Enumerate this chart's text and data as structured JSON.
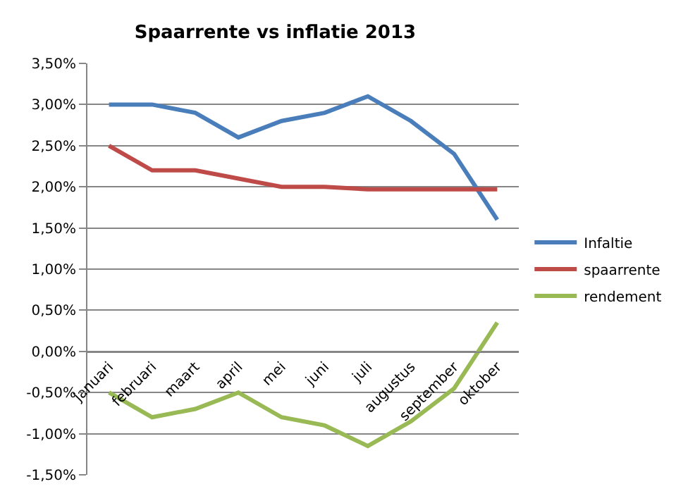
{
  "chart_data": {
    "type": "line",
    "title": "Spaarrente vs inflatie 2013",
    "categories": [
      "januari",
      "februari",
      "maart",
      "april",
      "mei",
      "juni",
      "juli",
      "augustus",
      "september",
      "oktober"
    ],
    "series": [
      {
        "name": "Infaltie",
        "color": "#4a7ebb",
        "values": [
          3.0,
          3.0,
          2.9,
          2.6,
          2.8,
          2.9,
          3.1,
          2.8,
          2.4,
          1.6
        ]
      },
      {
        "name": "spaarrente",
        "color": "#be4b48",
        "values": [
          2.5,
          2.2,
          2.2,
          2.1,
          2.0,
          2.0,
          1.97,
          1.97,
          1.97,
          1.97
        ]
      },
      {
        "name": "rendement",
        "color": "#98b954",
        "values": [
          -0.5,
          -0.8,
          -0.7,
          -0.5,
          -0.8,
          -0.9,
          -1.15,
          -0.85,
          -0.45,
          0.35
        ]
      }
    ],
    "ylim": [
      -1.5,
      3.5
    ],
    "yticks": [
      {
        "value": -1.5,
        "label": "-1,50%"
      },
      {
        "value": -1.0,
        "label": "-1,00%"
      },
      {
        "value": -0.5,
        "label": "-0,50%"
      },
      {
        "value": 0.0,
        "label": "0,00%"
      },
      {
        "value": 0.5,
        "label": "0,50%"
      },
      {
        "value": 1.0,
        "label": "1,00%"
      },
      {
        "value": 1.5,
        "label": "1,50%"
      },
      {
        "value": 2.0,
        "label": "2,00%"
      },
      {
        "value": 2.5,
        "label": "2,50%"
      },
      {
        "value": 3.0,
        "label": "3,00%"
      },
      {
        "value": 3.5,
        "label": "3,50%"
      }
    ],
    "grid": "y",
    "legend": "right",
    "marker": "none",
    "line_style": "solid"
  }
}
